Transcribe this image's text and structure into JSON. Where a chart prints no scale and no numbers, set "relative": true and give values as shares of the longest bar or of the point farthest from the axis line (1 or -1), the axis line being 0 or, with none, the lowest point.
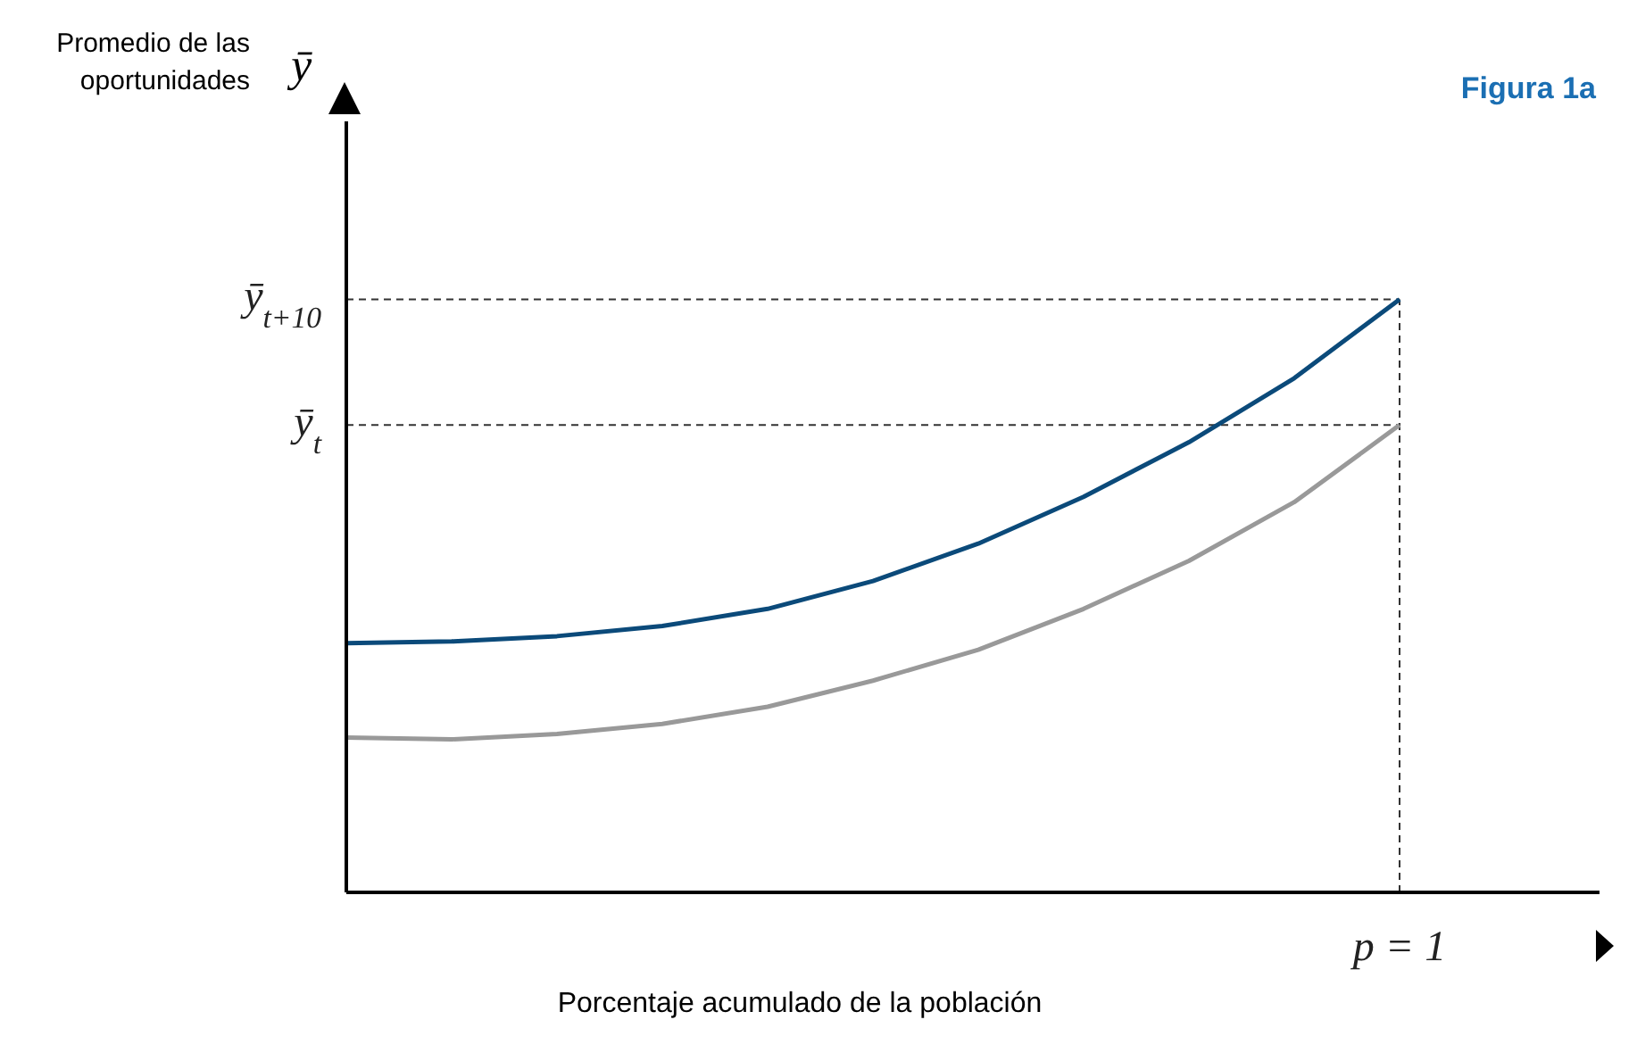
{
  "chart_data": {
    "type": "line",
    "title": "Figura 1a",
    "xlabel": "Porcentaje acumulado de la población",
    "annotations": [
      "Promedio de las oportunidades",
      "ȳ",
      "p = 1"
    ],
    "relative": true,
    "legend": false,
    "grid": false,
    "marker": "none",
    "line_style": "solid",
    "categories": [
      null,
      null,
      null,
      null,
      null,
      null,
      null,
      null,
      null,
      null,
      null
    ],
    "series": [
      {
        "color": "#0b4a7a",
        "values": [
          0.42,
          0.423,
          0.432,
          0.449,
          0.478,
          0.525,
          0.588,
          0.667,
          0.759,
          0.867,
          1
        ]
      },
      {
        "color": "#999999",
        "values": [
          0.261,
          0.258,
          0.267,
          0.284,
          0.313,
          0.357,
          0.409,
          0.478,
          0.559,
          0.658,
          0.788
        ]
      }
    ],
    "ref_lines": [
      {
        "axis": "y",
        "value": 1,
        "label": "ȳ$_{t+10}$",
        "line_style": "dashed",
        "color": "#333333"
      },
      {
        "axis": "y",
        "value": 0.788,
        "label": "ȳ$_{t}$",
        "line_style": "dashed",
        "color": "#333333"
      }
    ]
  }
}
